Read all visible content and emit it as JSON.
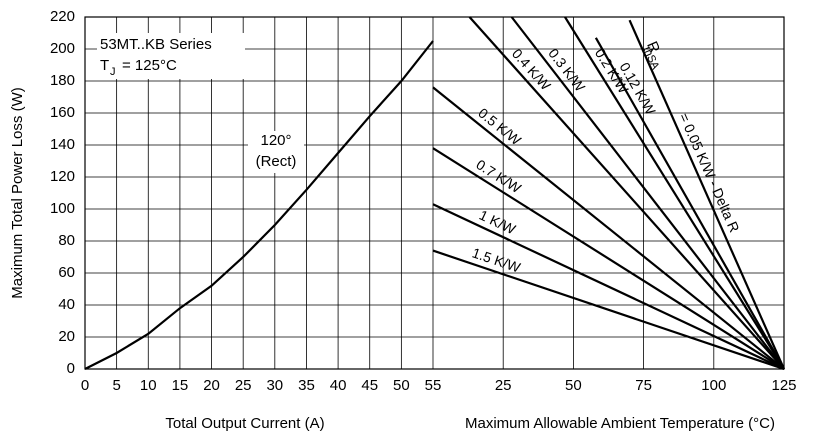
{
  "chart_data": [
    {
      "type": "line",
      "y_label": "Maximum Total Power Loss (W)",
      "x_label": "Total Output Current (A)",
      "annotations": [
        "53MT..KB Series",
        "T",
        "J",
        "= 125°C",
        "120°",
        "(Rect)"
      ],
      "xlim": [
        0,
        55
      ],
      "xticks": [
        0,
        5,
        10,
        15,
        20,
        25,
        30,
        35,
        40,
        45,
        50,
        55
      ],
      "ylim": [
        0,
        220
      ],
      "yticks": [
        0,
        20,
        40,
        60,
        80,
        100,
        120,
        140,
        160,
        180,
        200,
        220
      ],
      "grid": true,
      "x": [
        0,
        5,
        10,
        15,
        20,
        25,
        30,
        35,
        40,
        45,
        50,
        55
      ],
      "series": [
        {
          "name": "120°",
          "color": "#000000",
          "values": [
            0,
            10,
            22,
            38,
            52,
            70,
            90,
            112,
            135,
            158,
            180,
            205
          ]
        }
      ]
    },
    {
      "type": "line",
      "x_label": "Maximum Allowable Ambient Temperature (°C)",
      "annotations": [
        "R",
        "thSA"
      ],
      "xlim": [
        0,
        125
      ],
      "xticks": [
        25,
        50,
        75,
        100,
        125
      ],
      "ylim": [
        0,
        220
      ],
      "grid": true,
      "series": [
        {
          "name": "= 0.05 K/W - Delta R",
          "color": "#000000",
          "x": [
            70,
            125
          ],
          "values": [
            218,
            0
          ]
        },
        {
          "name": "0.12 K/W",
          "color": "#000000",
          "x": [
            58,
            125
          ],
          "values": [
            207,
            0
          ]
        },
        {
          "name": "0.2 K/W",
          "color": "#000000",
          "x": [
            47,
            125
          ],
          "values": [
            220,
            0
          ]
        },
        {
          "name": "0.3 K/W",
          "color": "#000000",
          "x": [
            28,
            125
          ],
          "values": [
            220,
            0
          ]
        },
        {
          "name": "0.4 K/W",
          "color": "#000000",
          "x": [
            13,
            125
          ],
          "values": [
            220,
            0
          ]
        },
        {
          "name": "0.5 K/W",
          "color": "#000000",
          "x": [
            0,
            125
          ],
          "values": [
            176,
            0
          ]
        },
        {
          "name": "0.7 K/W",
          "color": "#000000",
          "x": [
            0,
            125
          ],
          "values": [
            138,
            0
          ]
        },
        {
          "name": "1 K/W",
          "color": "#000000",
          "x": [
            0,
            125
          ],
          "values": [
            103,
            0
          ]
        },
        {
          "name": "1.5 K/W",
          "color": "#000000",
          "x": [
            0,
            125
          ],
          "values": [
            74,
            0
          ]
        }
      ]
    }
  ]
}
